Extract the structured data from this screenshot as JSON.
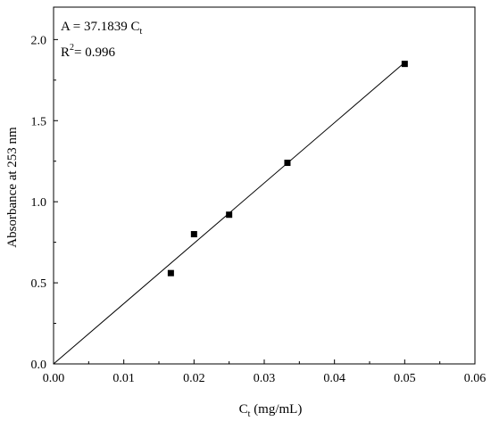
{
  "chart_data": {
    "type": "scatter",
    "xlabel": "Ct (mg/mL)",
    "xlabel_main": "C",
    "xlabel_sub": "t",
    "xlabel_rest": " (mg/mL)",
    "ylabel": "Absorbance at 253 nm",
    "xlim": [
      0,
      0.06
    ],
    "ylim": [
      0,
      2.2
    ],
    "x_ticks": [
      "0.00",
      "0.01",
      "0.02",
      "0.03",
      "0.04",
      "0.05",
      "0.06"
    ],
    "y_ticks": [
      "0.0",
      "0.5",
      "1.0",
      "1.5",
      "2.0"
    ],
    "grid": false,
    "legend": "none",
    "series": [
      {
        "marker": "square",
        "color": "#000000",
        "points": [
          {
            "x": 0.0167,
            "y": 0.56
          },
          {
            "x": 0.02,
            "y": 0.8
          },
          {
            "x": 0.025,
            "y": 0.92
          },
          {
            "x": 0.0333,
            "y": 1.24
          },
          {
            "x": 0.05,
            "y": 1.85
          }
        ]
      }
    ],
    "fit_line": {
      "slope": 37.1839,
      "intercept": 0,
      "x_range": [
        0,
        0.05
      ],
      "color": "#000000"
    },
    "annotations": {
      "equation_main": "A = 37.1839 C",
      "equation_sub": "t",
      "r2_label": "R",
      "r2_sup": "2",
      "r2_value": "= 0.996"
    }
  }
}
